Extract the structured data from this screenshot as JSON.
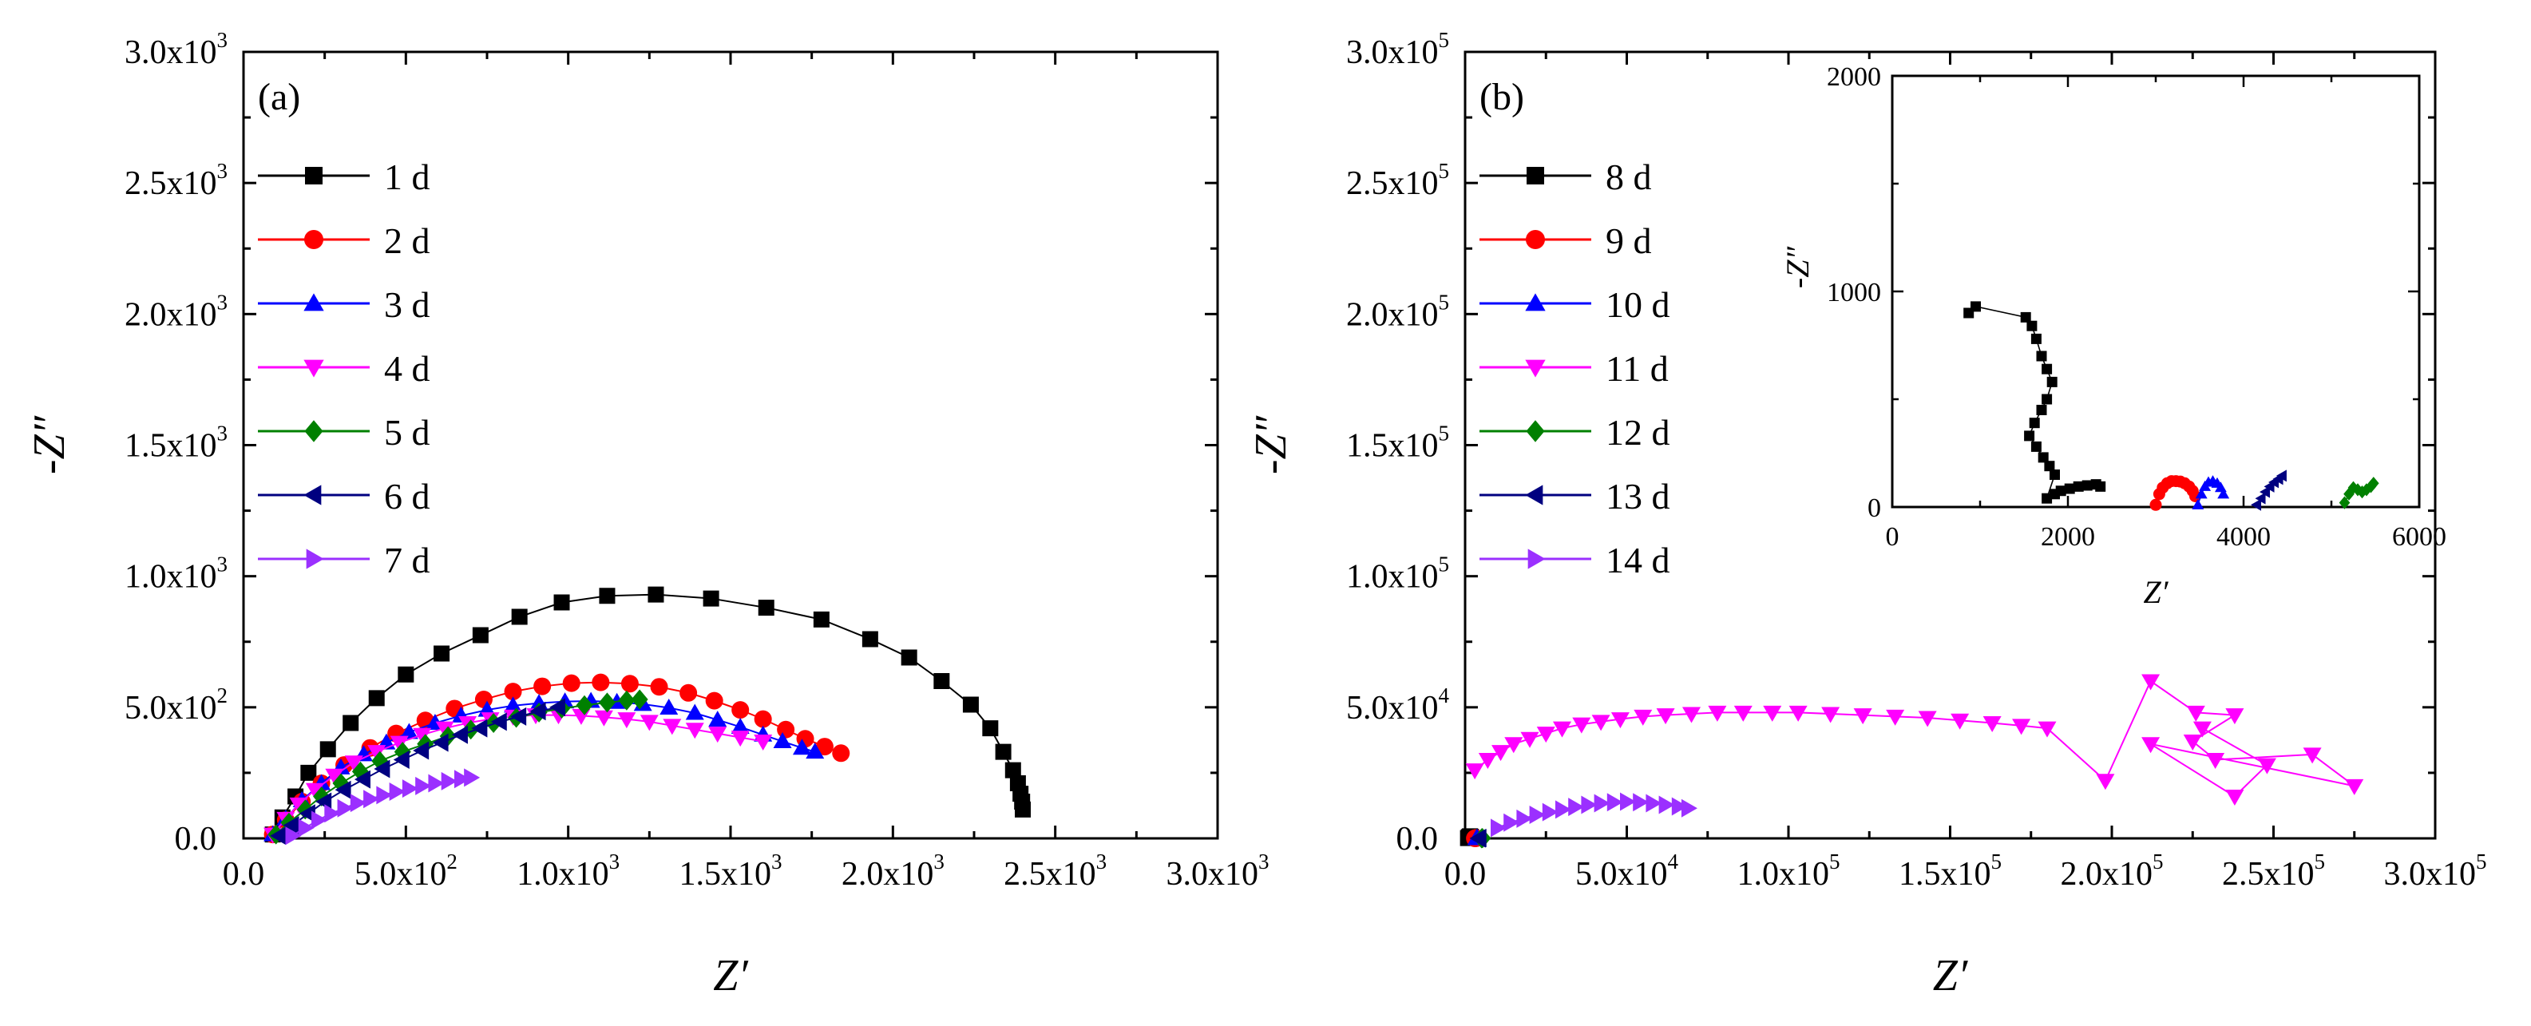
{
  "chart_data": [
    {
      "type": "scatter",
      "panel_label": "(a)",
      "xlabel": "Z′",
      "ylabel": "-Z″",
      "xlim": [
        0,
        3000
      ],
      "ylim": [
        0,
        3000
      ],
      "xticks": [
        {
          "value": 0,
          "mant": "0.0",
          "exp": ""
        },
        {
          "value": 500,
          "mant": "5.0x10",
          "exp": "2"
        },
        {
          "value": 1000,
          "mant": "1.0x10",
          "exp": "3"
        },
        {
          "value": 1500,
          "mant": "1.5x10",
          "exp": "3"
        },
        {
          "value": 2000,
          "mant": "2.0x10",
          "exp": "3"
        },
        {
          "value": 2500,
          "mant": "2.5x10",
          "exp": "3"
        },
        {
          "value": 3000,
          "mant": "3.0x10",
          "exp": "3"
        }
      ],
      "yticks": [
        {
          "value": 0,
          "mant": "0.0",
          "exp": ""
        },
        {
          "value": 500,
          "mant": "5.0x10",
          "exp": "2"
        },
        {
          "value": 1000,
          "mant": "1.0x10",
          "exp": "3"
        },
        {
          "value": 1500,
          "mant": "1.5x10",
          "exp": "3"
        },
        {
          "value": 2000,
          "mant": "2.0x10",
          "exp": "3"
        },
        {
          "value": 2500,
          "mant": "2.5x10",
          "exp": "3"
        },
        {
          "value": 3000,
          "mant": "3.0x10",
          "exp": "3"
        }
      ],
      "legend_position": "top-left",
      "series": [
        {
          "name": "1 d",
          "color": "#000000",
          "marker": "square",
          "x": [
            90,
            120,
            160,
            200,
            260,
            330,
            410,
            500,
            610,
            730,
            850,
            980,
            1120,
            1270,
            1440,
            1610,
            1780,
            1930,
            2050,
            2150,
            2240,
            2300,
            2340,
            2370,
            2385,
            2393,
            2398,
            2400
          ],
          "y": [
            15,
            80,
            160,
            250,
            340,
            440,
            535,
            625,
            705,
            775,
            845,
            900,
            925,
            930,
            915,
            880,
            835,
            760,
            690,
            600,
            510,
            420,
            330,
            260,
            210,
            170,
            140,
            110
          ]
        },
        {
          "name": "2 d",
          "color": "#ff0000",
          "marker": "circle",
          "x": [
            90,
            130,
            180,
            240,
            310,
            390,
            470,
            560,
            650,
            740,
            830,
            920,
            1010,
            1100,
            1190,
            1280,
            1370,
            1450,
            1530,
            1600,
            1670,
            1730,
            1790,
            1840
          ],
          "y": [
            15,
            70,
            140,
            210,
            280,
            345,
            400,
            450,
            495,
            530,
            560,
            580,
            592,
            595,
            590,
            578,
            555,
            525,
            490,
            455,
            415,
            380,
            350,
            325
          ]
        },
        {
          "name": "3 d",
          "color": "#0000ff",
          "marker": "triangle-up",
          "x": [
            90,
            130,
            180,
            240,
            300,
            370,
            440,
            510,
            590,
            670,
            750,
            830,
            910,
            990,
            1070,
            1150,
            1230,
            1310,
            1390,
            1460,
            1530,
            1600,
            1660,
            1720,
            1760
          ],
          "y": [
            15,
            75,
            145,
            210,
            270,
            320,
            365,
            405,
            440,
            468,
            490,
            506,
            516,
            522,
            524,
            520,
            512,
            498,
            478,
            452,
            425,
            395,
            370,
            345,
            330
          ]
        },
        {
          "name": "4 d",
          "color": "#ff00ff",
          "marker": "triangle-down",
          "x": [
            90,
            130,
            170,
            220,
            280,
            340,
            410,
            480,
            550,
            620,
            690,
            760,
            830,
            900,
            970,
            1040,
            1110,
            1180,
            1250,
            1320,
            1390,
            1460,
            1530,
            1600
          ],
          "y": [
            15,
            75,
            130,
            185,
            240,
            290,
            330,
            365,
            395,
            420,
            440,
            455,
            465,
            470,
            470,
            468,
            462,
            455,
            445,
            430,
            415,
            400,
            385,
            370
          ]
        },
        {
          "name": "5 d",
          "color": "#008000",
          "marker": "diamond",
          "x": [
            100,
            140,
            190,
            240,
            300,
            360,
            420,
            490,
            560,
            630,
            700,
            770,
            840,
            910,
            980,
            1050,
            1120,
            1180,
            1220
          ],
          "y": [
            15,
            60,
            110,
            160,
            210,
            255,
            295,
            330,
            360,
            390,
            415,
            440,
            460,
            480,
            495,
            508,
            518,
            526,
            530
          ]
        },
        {
          "name": "6 d",
          "color": "#000080",
          "marker": "triangle-left",
          "x": [
            110,
            150,
            200,
            250,
            310,
            370,
            430,
            490,
            550,
            610,
            670,
            730,
            790,
            850,
            910,
            970
          ],
          "y": [
            10,
            50,
            95,
            140,
            185,
            225,
            265,
            300,
            335,
            365,
            395,
            420,
            445,
            465,
            485,
            500
          ]
        },
        {
          "name": "7 d",
          "color": "#9b30ff",
          "marker": "triangle-right",
          "x": [
            150,
            190,
            230,
            270,
            310,
            350,
            390,
            430,
            470,
            510,
            550,
            590,
            630,
            670,
            700
          ],
          "y": [
            10,
            40,
            70,
            95,
            115,
            135,
            150,
            165,
            178,
            190,
            200,
            210,
            218,
            226,
            232
          ]
        }
      ]
    },
    {
      "type": "scatter",
      "panel_label": "(b)",
      "xlabel": "Z′",
      "ylabel": "-Z″",
      "xlim": [
        0,
        300000
      ],
      "ylim": [
        0,
        300000
      ],
      "xticks": [
        {
          "value": 0,
          "mant": "0.0",
          "exp": ""
        },
        {
          "value": 50000,
          "mant": "5.0x10",
          "exp": "4"
        },
        {
          "value": 100000,
          "mant": "1.0x10",
          "exp": "5"
        },
        {
          "value": 150000,
          "mant": "1.5x10",
          "exp": "5"
        },
        {
          "value": 200000,
          "mant": "2.0x10",
          "exp": "5"
        },
        {
          "value": 250000,
          "mant": "2.5x10",
          "exp": "5"
        },
        {
          "value": 300000,
          "mant": "3.0x10",
          "exp": "5"
        }
      ],
      "yticks": [
        {
          "value": 0,
          "mant": "0.0",
          "exp": ""
        },
        {
          "value": 50000,
          "mant": "5.0x10",
          "exp": "4"
        },
        {
          "value": 100000,
          "mant": "1.0x10",
          "exp": "5"
        },
        {
          "value": 150000,
          "mant": "1.5x10",
          "exp": "5"
        },
        {
          "value": 200000,
          "mant": "2.0x10",
          "exp": "5"
        },
        {
          "value": 250000,
          "mant": "2.5x10",
          "exp": "5"
        },
        {
          "value": 300000,
          "mant": "3.0x10",
          "exp": "5"
        }
      ],
      "legend_position": "top-left",
      "series": [
        {
          "name": "8 d",
          "color": "#000000",
          "marker": "square",
          "x": [
            900,
            1200,
            1500,
            1800,
            2000
          ],
          "y": [
            100,
            500,
            800,
            600,
            150
          ]
        },
        {
          "name": "9 d",
          "color": "#ff0000",
          "marker": "circle",
          "x": [
            3000,
            3100,
            3200,
            3300,
            3400
          ],
          "y": [
            0,
            80,
            120,
            100,
            50
          ]
        },
        {
          "name": "10 d",
          "color": "#0000ff",
          "marker": "triangle-up",
          "x": [
            3500,
            3600,
            3700,
            3800
          ],
          "y": [
            0,
            80,
            120,
            90
          ]
        },
        {
          "name": "11 d",
          "color": "#ff00ff",
          "marker": "triangle-down",
          "x": [
            3000,
            7000,
            11000,
            15000,
            20000,
            25000,
            30000,
            36000,
            42000,
            48000,
            55000,
            62000,
            70000,
            78000,
            86000,
            95000,
            103000,
            113000,
            123000,
            133000,
            143000,
            153000,
            163000,
            172000,
            180000,
            198000,
            212000,
            226000,
            238000,
            225000,
            232000,
            262000,
            275000,
            212000,
            238000,
            248000,
            228000
          ],
          "y": [
            26000,
            30000,
            33000,
            36000,
            38000,
            40000,
            42000,
            43500,
            44500,
            45500,
            46500,
            47000,
            47500,
            48000,
            48000,
            48000,
            48000,
            47500,
            47000,
            46500,
            46000,
            45000,
            44000,
            43000,
            42000,
            22000,
            60000,
            48000,
            47000,
            37000,
            30000,
            32000,
            20000,
            36000,
            16000,
            28000,
            42000
          ]
        },
        {
          "name": "12 d",
          "color": "#008000",
          "marker": "diamond",
          "x": [
            5100,
            5200,
            5300,
            5400
          ],
          "y": [
            0,
            60,
            100,
            80
          ]
        },
        {
          "name": "13 d",
          "color": "#000080",
          "marker": "triangle-left",
          "x": [
            4200,
            4300,
            4400,
            4500
          ],
          "y": [
            0,
            50,
            100,
            130
          ]
        },
        {
          "name": "14 d",
          "color": "#9b30ff",
          "marker": "triangle-right",
          "x": [
            10000,
            14000,
            18000,
            22000,
            26000,
            30000,
            34000,
            38000,
            42000,
            46000,
            50000,
            54000,
            58000,
            62000,
            66000,
            69000
          ],
          "y": [
            4000,
            6000,
            7500,
            9000,
            10000,
            11000,
            12000,
            12800,
            13400,
            13800,
            14000,
            13800,
            13400,
            12800,
            12200,
            11500
          ]
        }
      ],
      "inset": {
        "xlabel": "Z′",
        "ylabel": "-Z″",
        "xlim": [
          0,
          6000
        ],
        "ylim": [
          0,
          2000
        ],
        "xticks": [
          "0",
          "2000",
          "4000",
          "6000"
        ],
        "xtick_values": [
          0,
          2000,
          4000,
          6000
        ],
        "yticks": [
          "0",
          "1000",
          "2000"
        ],
        "ytick_values": [
          0,
          1000,
          2000
        ],
        "series": [
          {
            "name": "8 d",
            "color": "#000000",
            "marker": "square",
            "x": [
              870,
              950,
              1520,
              1590,
              1640,
              1700,
              1760,
              1820,
              1760,
              1700,
              1620,
              1560,
              1640,
              1720,
              1790,
              1850,
              1760,
              1850,
              1920,
              2020,
              2120,
              2220,
              2320,
              2370
            ],
            "y": [
              900,
              930,
              880,
              840,
              780,
              700,
              640,
              580,
              500,
              450,
              390,
              330,
              280,
              230,
              190,
              150,
              40,
              60,
              75,
              85,
              95,
              100,
              105,
              95
            ]
          },
          {
            "name": "9 d",
            "color": "#ff0000",
            "marker": "circle",
            "x": [
              3000,
              3040,
              3080,
              3130,
              3180,
              3230,
              3280,
              3330,
              3380,
              3420,
              3450
            ],
            "y": [
              10,
              60,
              90,
              110,
              120,
              120,
              118,
              110,
              95,
              75,
              50
            ]
          },
          {
            "name": "10 d",
            "color": "#0000ff",
            "marker": "triangle-up",
            "x": [
              3480,
              3520,
              3560,
              3600,
              3650,
              3700,
              3740,
              3770
            ],
            "y": [
              10,
              60,
              95,
              115,
              120,
              110,
              90,
              60
            ]
          },
          {
            "name": "13 d",
            "color": "#000080",
            "marker": "triangle-left",
            "x": [
              4150,
              4200,
              4250,
              4300,
              4350,
              4400,
              4440
            ],
            "y": [
              10,
              40,
              70,
              95,
              115,
              130,
              145
            ]
          },
          {
            "name": "12 d",
            "color": "#008000",
            "marker": "diamond",
            "x": [
              5150,
              5200,
              5250,
              5300,
              5350,
              5400,
              5450,
              5480
            ],
            "y": [
              20,
              60,
              90,
              80,
              70,
              80,
              95,
              110
            ]
          }
        ]
      }
    }
  ]
}
